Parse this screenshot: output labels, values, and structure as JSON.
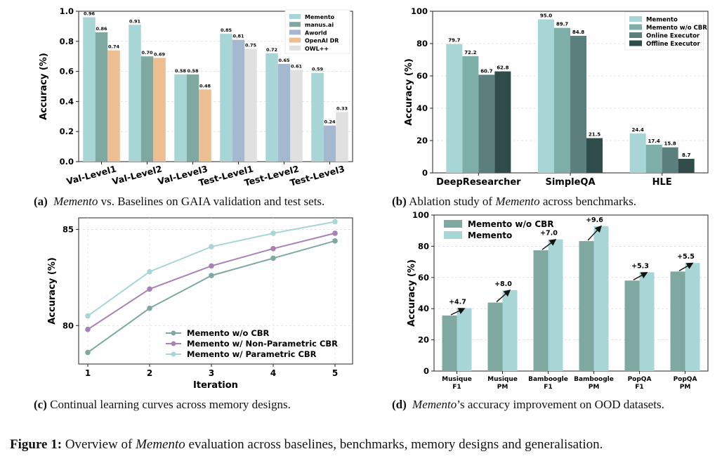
{
  "figure": {
    "label": "Figure 1:",
    "text_pre": " Overview of ",
    "text_em": "Memento",
    "text_post": " evaluation across baselines, benchmarks, memory designs and generalisation."
  },
  "captions": [
    {
      "label": "(a)",
      "em": "Memento",
      "post": " vs. Baselines on GAIA validation and test sets."
    },
    {
      "label": "(b)",
      "pre": " Ablation study of ",
      "em": "Memento",
      "post": " across benchmarks."
    },
    {
      "label": "(c)",
      "pre": " Continual learning curves across memory designs."
    },
    {
      "label": "(d)",
      "em": "Memento",
      "post": "’s accuracy improvement on OOD datasets."
    }
  ],
  "chart_data": [
    {
      "id": "a",
      "type": "bar",
      "ylabel": "Accuracy (%)",
      "ylim": [
        0,
        1.0
      ],
      "yticks": [
        "0.0",
        "0.2",
        "0.4",
        "0.6",
        "0.8",
        "1.0"
      ],
      "categories": [
        "Val-Level1",
        "Val-Level2",
        "Val-Level3",
        "Test-Level1",
        "Test-Level2",
        "Test-Level3"
      ],
      "legend_position": "top-right",
      "grid": true,
      "series": [
        {
          "name": "Memento",
          "color": "#a8d5d6",
          "values": [
            0.96,
            0.91,
            0.58,
            0.85,
            0.72,
            0.59
          ]
        },
        {
          "name": "manus.ai",
          "color": "#7fa9a0",
          "values": [
            0.86,
            0.7,
            0.58,
            null,
            null,
            null
          ]
        },
        {
          "name": "Aworld",
          "color": "#a4b8cf",
          "values": [
            null,
            null,
            null,
            0.81,
            0.65,
            0.24
          ]
        },
        {
          "name": "OpenAI DR",
          "color": "#ecbe91",
          "values": [
            0.74,
            0.69,
            0.48,
            null,
            null,
            null
          ]
        },
        {
          "name": "OWL++",
          "color": "#e0e0e0",
          "values": [
            null,
            null,
            null,
            0.75,
            0.61,
            0.33
          ]
        }
      ],
      "labels": [
        [
          "0.96",
          "0.86",
          "0.74"
        ],
        [
          "0.91",
          "0.70",
          "0.69"
        ],
        [
          "0.58",
          "0.58",
          "0.48"
        ],
        [
          "0.85",
          "0.81",
          "0.75"
        ],
        [
          "0.72",
          "0.65",
          "0.61"
        ],
        [
          "0.59",
          "0.24",
          "0.33"
        ]
      ]
    },
    {
      "id": "b",
      "type": "bar",
      "ylabel": "Accuracy (%)",
      "ylim": [
        0,
        100
      ],
      "yticks": [
        "0",
        "20",
        "40",
        "60",
        "80",
        "100"
      ],
      "categories": [
        "DeepResearcher",
        "SimpleQA",
        "HLE"
      ],
      "legend_position": "top-right",
      "grid": true,
      "series": [
        {
          "name": "Memento",
          "color": "#a8d5d6",
          "values": [
            79.7,
            95.0,
            24.4
          ],
          "labels": [
            "79.7",
            "95.0",
            "24.4"
          ]
        },
        {
          "name": "Memento w/o CBR",
          "color": "#7eaea8",
          "values": [
            72.2,
            89.7,
            17.4
          ],
          "labels": [
            "72.2",
            "89.7",
            "17.4"
          ]
        },
        {
          "name": "Online Executor",
          "color": "#5a7f7c",
          "values": [
            60.7,
            84.8,
            15.8
          ],
          "labels": [
            "60.7",
            "84.8",
            "15.8"
          ]
        },
        {
          "name": "Offline Executor",
          "color": "#2f4b4a",
          "values": [
            62.8,
            21.5,
            8.7
          ],
          "labels": [
            "62.8",
            "21.5",
            "8.7"
          ]
        }
      ]
    },
    {
      "id": "c",
      "type": "line",
      "xlabel": "Iteration",
      "ylabel": "Accuracy (%)",
      "x": [
        1,
        2,
        3,
        4,
        5
      ],
      "xticks": [
        "1",
        "2",
        "3",
        "4",
        "5"
      ],
      "ylim": [
        78,
        85.6
      ],
      "yticks": [
        {
          "v": 80,
          "label": "80"
        },
        {
          "v": 85,
          "label": "85"
        }
      ],
      "legend_position": "bottom-right",
      "grid": true,
      "series": [
        {
          "name": "Memento w/o CBR",
          "color": "#7fa9a0",
          "values": [
            78.6,
            80.9,
            82.6,
            83.5,
            84.4
          ]
        },
        {
          "name": "Memento w/ Non-Parametric CBR",
          "color": "#a882b4",
          "values": [
            79.8,
            81.9,
            83.1,
            84.0,
            84.8
          ]
        },
        {
          "name": "Memento w/ Parametric CBR",
          "color": "#a8d5d6",
          "values": [
            80.5,
            82.8,
            84.1,
            84.8,
            85.4
          ]
        }
      ]
    },
    {
      "id": "d",
      "type": "bar",
      "ylabel": "Accuracy (%)",
      "ylim": [
        0,
        100
      ],
      "yticks": [
        "0",
        "20",
        "40",
        "60",
        "80",
        "100"
      ],
      "categories": [
        [
          "Musique",
          "F1"
        ],
        [
          "Musique",
          "PM"
        ],
        [
          "Bamboogle",
          "F1"
        ],
        [
          "Bamboogle",
          "PM"
        ],
        [
          "PopQA",
          "F1"
        ],
        [
          "PopQA",
          "PM"
        ]
      ],
      "legend_position": "top-left",
      "grid": true,
      "series": [
        {
          "name": "Memento w/o CBR",
          "color": "#7fa9a0",
          "values": [
            35.6,
            43.9,
            77.4,
            83.3,
            58.0,
            63.8
          ]
        },
        {
          "name": "Memento",
          "color": "#a8d5d6",
          "values": [
            40.3,
            51.9,
            84.4,
            92.9,
            63.3,
            69.3
          ]
        }
      ],
      "improvements": [
        "+4.7",
        "+8.0",
        "+7.0",
        "+9.6",
        "+5.3",
        "+5.5"
      ]
    }
  ]
}
